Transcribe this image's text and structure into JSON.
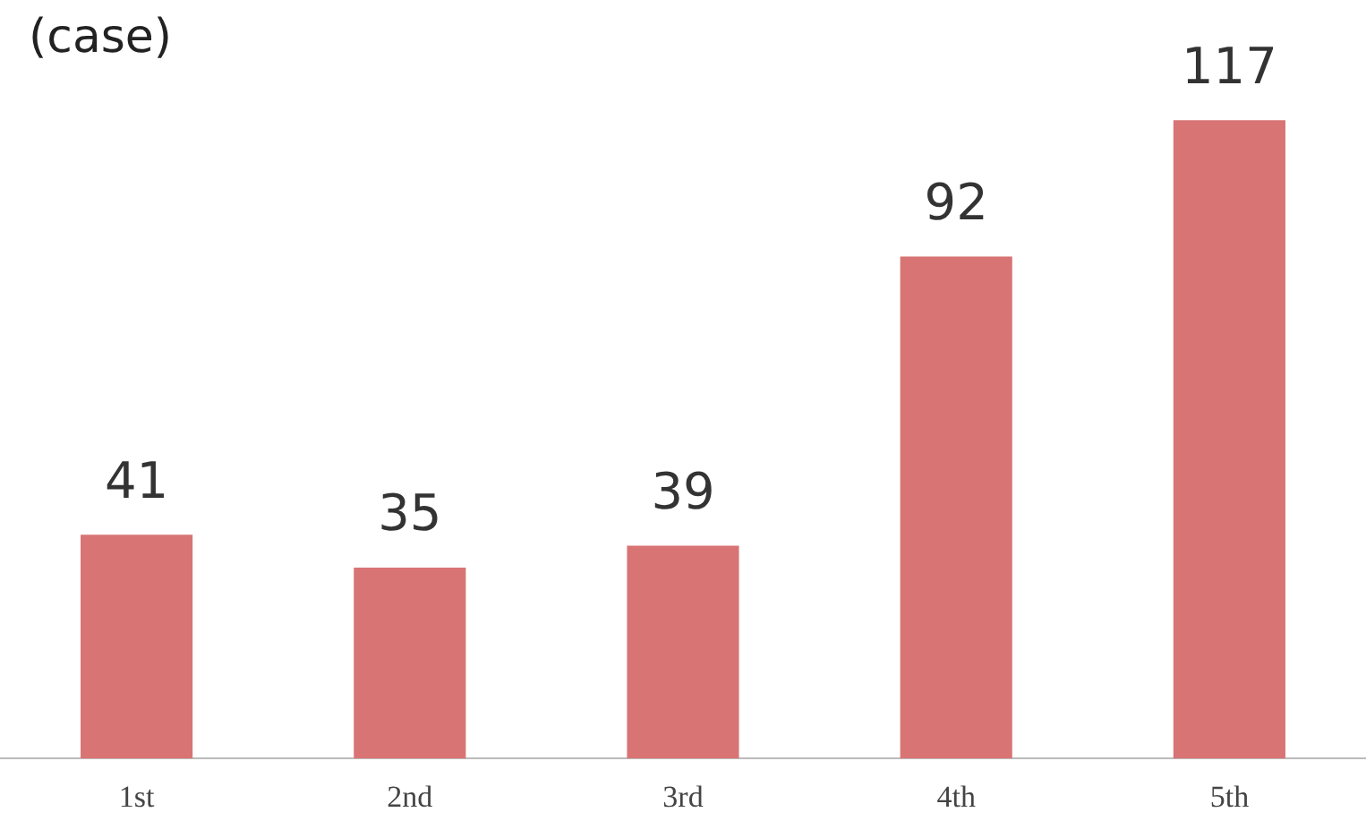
{
  "chart_data": {
    "type": "bar",
    "ylabel": "(case)",
    "categories": [
      "1st",
      "2nd",
      "3rd",
      "4th",
      "5th"
    ],
    "values": [
      41,
      35,
      39,
      92,
      117
    ],
    "color": "#d97474",
    "data_labels": true,
    "grid": false,
    "legend": false
  }
}
